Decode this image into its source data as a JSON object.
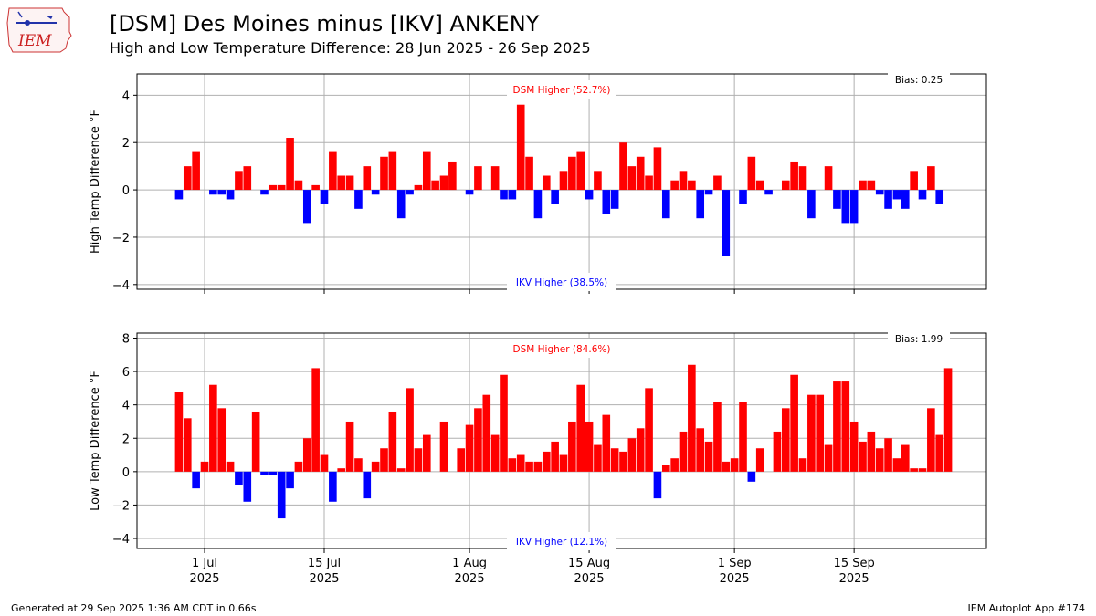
{
  "header": {
    "title": "[DSM] Des Moines minus [IKV] ANKENY",
    "subtitle": "High and Low Temperature Difference: 28 Jun 2025 - 26 Sep 2025",
    "logo_text": "IEM"
  },
  "footer": {
    "left": "Generated at 29 Sep 2025 1:36 AM CDT in 0.66s",
    "right": "IEM Autoplot App #174"
  },
  "colors": {
    "positive": "#ff0000",
    "negative": "#0000ff",
    "grid": "#b0b0b0"
  },
  "chart_data": [
    {
      "type": "bar",
      "ylabel": "High Temp Difference $^\\circ$F",
      "ylabel_text": "High Temp Difference °F",
      "ylim": [
        -4.2,
        4.9
      ],
      "yticks": [
        -4,
        -2,
        0,
        2,
        4
      ],
      "grid": true,
      "higher_label": "DSM Higher (52.7%)",
      "lower_label": "IKV Higher (38.5%)",
      "bias_label": "Bias: 0.25",
      "x_start_date": "2025-06-28",
      "values": [
        -0.4,
        1.0,
        1.6,
        0,
        -0.2,
        -0.2,
        -0.4,
        0.8,
        1.0,
        0,
        -0.2,
        0.2,
        0.2,
        2.2,
        0.4,
        -1.4,
        0.2,
        -0.6,
        1.6,
        0.6,
        0.6,
        -0.8,
        1.0,
        -0.2,
        1.4,
        1.6,
        -1.2,
        -0.2,
        0.2,
        1.6,
        0.4,
        0.6,
        1.2,
        0,
        -0.2,
        1.0,
        0,
        1.0,
        -0.4,
        -0.4,
        3.6,
        1.4,
        -1.2,
        0.6,
        -0.6,
        0.8,
        1.4,
        1.6,
        -0.4,
        0.8,
        -1.0,
        -0.8,
        2.0,
        1.0,
        1.4,
        0.6,
        1.8,
        -1.2,
        0.4,
        0.8,
        0.4,
        -1.2,
        -0.2,
        0.6,
        -2.8,
        0,
        -0.6,
        1.4,
        0.4,
        -0.2,
        0,
        0.4,
        1.2,
        1.0,
        -1.2,
        0,
        1.0,
        -0.8,
        -1.4,
        -1.4,
        0.4,
        0.4,
        -0.2,
        -0.8,
        -0.4,
        -0.8,
        0.8,
        -0.4,
        1.0,
        -0.6,
        0
      ]
    },
    {
      "type": "bar",
      "ylabel_text": "Low Temp Difference °F",
      "ylim": [
        -4.6,
        8.3
      ],
      "yticks": [
        -4,
        -2,
        0,
        2,
        4,
        6,
        8
      ],
      "grid": true,
      "higher_label": "DSM Higher (84.6%)",
      "lower_label": "IKV Higher (12.1%)",
      "bias_label": "Bias: 1.99",
      "x_start_date": "2025-06-28",
      "values": [
        4.8,
        3.2,
        -1.0,
        0.6,
        5.2,
        3.8,
        0.6,
        -0.8,
        -1.8,
        3.6,
        -0.2,
        -0.2,
        -2.8,
        -1.0,
        0.6,
        2.0,
        6.2,
        1.0,
        -1.8,
        0.2,
        3.0,
        0.8,
        -1.6,
        0.6,
        1.4,
        3.6,
        0.2,
        5.0,
        1.4,
        2.2,
        0,
        3.0,
        0,
        1.4,
        2.8,
        3.8,
        4.6,
        2.2,
        5.8,
        0.8,
        1.0,
        0.6,
        0.6,
        1.2,
        1.8,
        1.0,
        3.0,
        5.2,
        3.0,
        1.6,
        3.4,
        1.4,
        1.2,
        2.0,
        2.6,
        5.0,
        -1.6,
        0.4,
        0.8,
        2.4,
        6.4,
        2.6,
        1.8,
        4.2,
        0.6,
        0.8,
        4.2,
        -0.6,
        1.4,
        0,
        2.4,
        3.8,
        5.8,
        0.8,
        4.6,
        4.6,
        1.6,
        5.4,
        5.4,
        3.0,
        1.8,
        2.4,
        1.4,
        2.0,
        0.8,
        1.6,
        0.2,
        0.2,
        3.8,
        2.2,
        6.2
      ]
    }
  ],
  "xticks": [
    {
      "label": "1 Jul",
      "year": "2025",
      "day_index": 3
    },
    {
      "label": "15 Jul",
      "year": "2025",
      "day_index": 17
    },
    {
      "label": "1 Aug",
      "year": "2025",
      "day_index": 34
    },
    {
      "label": "15 Aug",
      "year": "2025",
      "day_index": 48
    },
    {
      "label": "1 Sep",
      "year": "2025",
      "day_index": 65
    },
    {
      "label": "15 Sep",
      "year": "2025",
      "day_index": 79
    }
  ]
}
